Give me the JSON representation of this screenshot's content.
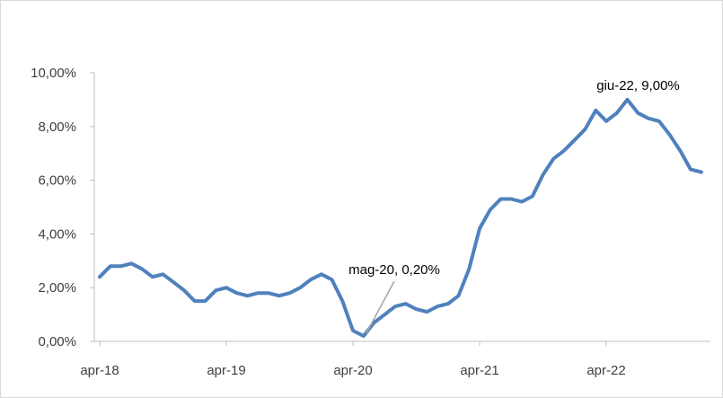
{
  "chart_data": {
    "type": "line",
    "title": "",
    "xlabel": "",
    "ylabel": "",
    "ylim": [
      0,
      10
    ],
    "y_ticks": [
      0,
      2,
      4,
      6,
      8,
      10
    ],
    "y_tick_labels": [
      "0,00%",
      "2,00%",
      "4,00%",
      "6,00%",
      "8,00%",
      "10,00%"
    ],
    "x_tick_labels": [
      "apr-18",
      "apr-19",
      "apr-20",
      "apr-21",
      "apr-22"
    ],
    "x_tick_index": [
      0,
      12,
      24,
      36,
      48
    ],
    "grid": false,
    "legend": "none",
    "series": [
      {
        "color": "#4f81bd",
        "values": [
          2.4,
          2.8,
          2.8,
          2.9,
          2.7,
          2.4,
          2.5,
          2.2,
          1.9,
          1.5,
          1.5,
          1.9,
          2.0,
          1.8,
          1.7,
          1.8,
          1.8,
          1.7,
          1.8,
          2.0,
          2.3,
          2.5,
          2.3,
          1.5,
          0.4,
          0.2,
          0.7,
          1.0,
          1.3,
          1.4,
          1.2,
          1.1,
          1.3,
          1.4,
          1.7,
          2.7,
          4.2,
          4.9,
          5.3,
          5.3,
          5.2,
          5.4,
          6.2,
          6.8,
          7.1,
          7.5,
          7.9,
          8.6,
          8.2,
          8.5,
          9.0,
          8.5,
          8.3,
          8.2,
          7.7,
          7.1,
          6.4,
          6.3
        ]
      }
    ],
    "annotations": [
      {
        "text": "mag-20, 0,20%",
        "index": 25,
        "value": 0.2
      },
      {
        "text": "giu-22, 9,00%",
        "index": 50,
        "value": 9.0
      }
    ]
  }
}
